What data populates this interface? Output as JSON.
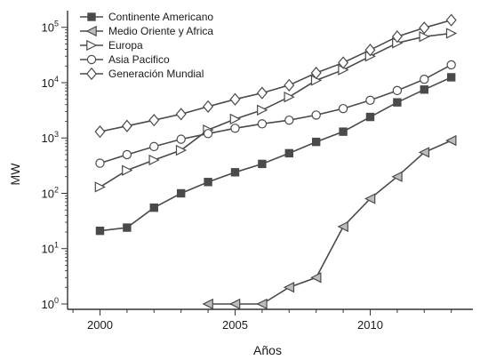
{
  "chart_data": {
    "type": "line",
    "title": "",
    "xlabel": "Años",
    "ylabel": "MW",
    "yscale": "log",
    "xlim": [
      1998.8,
      2013.8
    ],
    "ylim": [
      0.8,
      200000
    ],
    "xticks": [
      2000,
      2005,
      2010
    ],
    "xtick_labels": [
      "2000",
      "2005",
      "2010"
    ],
    "yticks": [
      1,
      10,
      100,
      1000,
      10000,
      100000
    ],
    "ytick_labels": [
      {
        "base": "10",
        "exp": "0"
      },
      {
        "base": "10",
        "exp": "1"
      },
      {
        "base": "10",
        "exp": "2"
      },
      {
        "base": "10",
        "exp": "3"
      },
      {
        "base": "10",
        "exp": "4"
      },
      {
        "base": "10",
        "exp": "5"
      }
    ],
    "grid": false,
    "legend_position": "top-left",
    "series": [
      {
        "name": "Continente Americano",
        "marker": "square",
        "color": "#4a4a4a",
        "x": [
          2000,
          2001,
          2002,
          2003,
          2004,
          2005,
          2006,
          2007,
          2008,
          2009,
          2010,
          2011,
          2012,
          2013
        ],
        "y": [
          21,
          24,
          55,
          100,
          160,
          240,
          340,
          530,
          850,
          1300,
          2400,
          4400,
          7500,
          12500
        ]
      },
      {
        "name": "Medio Oriente y Africa",
        "marker": "triangle-left",
        "color": "#4a4a4a",
        "x": [
          2004,
          2005,
          2006,
          2007,
          2008,
          2009,
          2010,
          2011,
          2012,
          2013
        ],
        "y": [
          1,
          1,
          1,
          2,
          3,
          25,
          80,
          200,
          550,
          900
        ]
      },
      {
        "name": "Europa",
        "marker": "triangle-right",
        "color": "#4a4a4a",
        "x": [
          2000,
          2001,
          2002,
          2003,
          2004,
          2005,
          2006,
          2007,
          2008,
          2009,
          2010,
          2011,
          2012,
          2013
        ],
        "y": [
          130,
          260,
          400,
          600,
          1400,
          2200,
          3200,
          5500,
          11000,
          17000,
          30000,
          52000,
          68000,
          78000
        ]
      },
      {
        "name": "Asia Pacifico",
        "marker": "circle",
        "color": "#4a4a4a",
        "x": [
          2000,
          2001,
          2002,
          2003,
          2004,
          2005,
          2006,
          2007,
          2008,
          2009,
          2010,
          2011,
          2012,
          2013
        ],
        "y": [
          350,
          500,
          700,
          950,
          1200,
          1500,
          1800,
          2100,
          2600,
          3400,
          4800,
          7200,
          11500,
          21000
        ]
      },
      {
        "name": "Generación Mundial",
        "marker": "diamond",
        "color": "#4a4a4a",
        "x": [
          2000,
          2001,
          2002,
          2003,
          2004,
          2005,
          2006,
          2007,
          2008,
          2009,
          2010,
          2011,
          2012,
          2013
        ],
        "y": [
          1300,
          1650,
          2100,
          2700,
          3700,
          5000,
          6500,
          9000,
          15000,
          23000,
          39000,
          68000,
          98000,
          135000
        ]
      }
    ]
  }
}
